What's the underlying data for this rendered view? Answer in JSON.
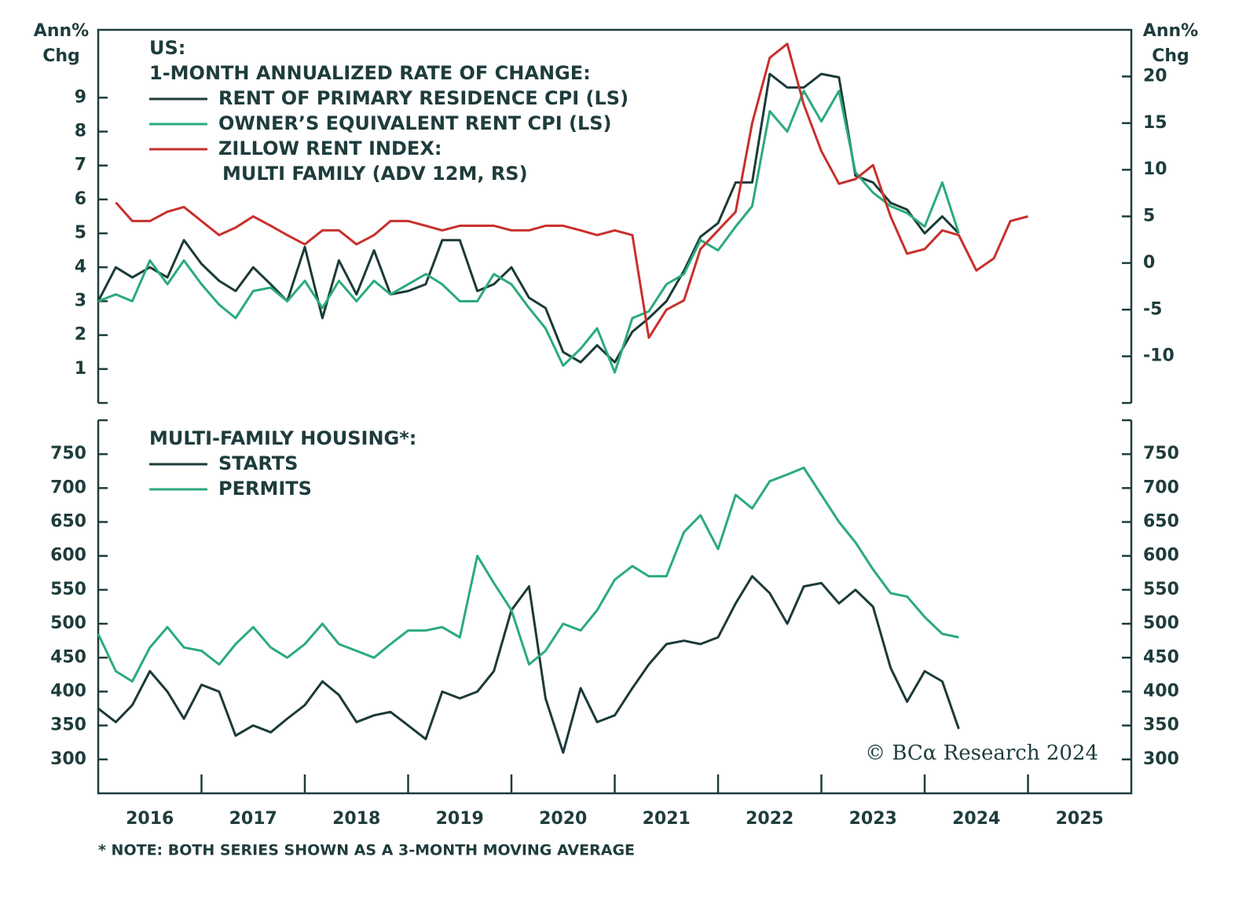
{
  "chart_data": [
    {
      "type": "line",
      "legend_title": [
        "US:",
        "1-MONTH ANNUALIZED RATE OF CHANGE:"
      ],
      "y_label": [
        "Ann%",
        "Chg"
      ],
      "y2_label": [
        "Ann%",
        "Chg"
      ],
      "xlim": [
        2016,
        2026
      ],
      "ylim": [
        0,
        11
      ],
      "yticks": [
        1,
        2,
        3,
        4,
        5,
        6,
        7,
        8,
        9
      ],
      "y2lim": [
        -15,
        25
      ],
      "y2ticks": [
        -10,
        -5,
        0,
        5,
        10,
        15,
        20
      ],
      "x": [
        2016.0,
        2016.17,
        2016.33,
        2016.5,
        2016.67,
        2016.83,
        2017.0,
        2017.17,
        2017.33,
        2017.5,
        2017.67,
        2017.83,
        2018.0,
        2018.17,
        2018.33,
        2018.5,
        2018.67,
        2018.83,
        2019.0,
        2019.17,
        2019.33,
        2019.5,
        2019.67,
        2019.83,
        2020.0,
        2020.17,
        2020.33,
        2020.5,
        2020.67,
        2020.83,
        2021.0,
        2021.17,
        2021.33,
        2021.5,
        2021.67,
        2021.83,
        2022.0,
        2022.17,
        2022.33,
        2022.5,
        2022.67,
        2022.83,
        2023.0,
        2023.17,
        2023.33,
        2023.5,
        2023.67,
        2023.83,
        2024.0,
        2024.17,
        2024.33,
        2024.5,
        2024.67,
        2024.83,
        2025.0
      ],
      "series": [
        {
          "name": "RENT OF PRIMARY RESIDENCE CPI (LS)",
          "color": "#1c3a3a",
          "values": [
            3.0,
            4.0,
            3.7,
            4.0,
            3.7,
            4.8,
            4.1,
            3.6,
            3.3,
            4.0,
            3.5,
            3.0,
            4.6,
            2.5,
            4.2,
            3.2,
            4.5,
            3.2,
            3.3,
            3.5,
            4.8,
            4.8,
            3.3,
            3.5,
            4.0,
            3.1,
            2.8,
            1.5,
            1.2,
            1.7,
            1.2,
            2.1,
            2.5,
            3.0,
            3.9,
            4.9,
            5.3,
            6.5,
            6.5,
            9.7,
            9.3,
            9.3,
            9.7,
            9.6,
            6.7,
            6.5,
            5.9,
            5.7,
            5.0,
            5.5,
            5.0,
            null,
            null,
            null,
            null
          ]
        },
        {
          "name": "OWNER’S EQUIVALENT RENT CPI (LS)",
          "color": "#2bab7b",
          "values": [
            3.0,
            3.2,
            3.0,
            4.2,
            3.5,
            4.2,
            3.5,
            2.9,
            2.5,
            3.3,
            3.4,
            3.0,
            3.6,
            2.8,
            3.6,
            3.0,
            3.6,
            3.2,
            3.5,
            3.8,
            3.5,
            3.0,
            3.0,
            3.8,
            3.5,
            2.8,
            2.2,
            1.1,
            1.6,
            2.2,
            0.9,
            2.5,
            2.7,
            3.5,
            3.8,
            4.8,
            4.5,
            5.2,
            5.8,
            8.6,
            8.0,
            9.2,
            8.3,
            9.2,
            6.8,
            6.2,
            5.8,
            5.6,
            5.2,
            6.5,
            5.0,
            null,
            null,
            null,
            null
          ]
        },
        {
          "name_lines": [
            "ZILLOW RENT INDEX:",
            "MULTI FAMILY (ADV 12M, RS)"
          ],
          "color": "#c8302c",
          "axis": "y2",
          "values": [
            null,
            6.5,
            4.5,
            4.5,
            5.5,
            6.0,
            4.5,
            3.0,
            3.8,
            5.0,
            4.0,
            3.0,
            2.0,
            3.5,
            3.5,
            2.0,
            3.0,
            4.5,
            4.5,
            4.0,
            3.5,
            4.0,
            4.0,
            4.0,
            3.5,
            3.5,
            4.0,
            4.0,
            3.5,
            3.0,
            3.5,
            3.0,
            -8,
            -5,
            -4,
            1.5,
            3.5,
            5.5,
            15,
            22,
            23.5,
            17,
            12,
            8.5,
            9,
            10.5,
            5,
            1,
            1.5,
            3.5,
            3,
            -0.8,
            0.5,
            4.5,
            5
          ]
        }
      ]
    },
    {
      "type": "line",
      "legend_title": [
        "MULTI-FAMILY HOUSING*:"
      ],
      "xlim": [
        2016,
        2026
      ],
      "xticks": [
        {
          "value": 2016.5,
          "label": "2016"
        },
        {
          "value": 2017.5,
          "label": "2017"
        },
        {
          "value": 2018.5,
          "label": "2018"
        },
        {
          "value": 2019.5,
          "label": "2019"
        },
        {
          "value": 2020.5,
          "label": "2020"
        },
        {
          "value": 2021.5,
          "label": "2021"
        },
        {
          "value": 2022.5,
          "label": "2022"
        },
        {
          "value": 2023.5,
          "label": "2023"
        },
        {
          "value": 2024.5,
          "label": "2024"
        },
        {
          "value": 2025.5,
          "label": "2025"
        }
      ],
      "xtick_marks": [
        2017,
        2018,
        2019,
        2020,
        2021,
        2022,
        2023,
        2024,
        2025
      ],
      "ylim": [
        250,
        800
      ],
      "yticks": [
        300,
        350,
        400,
        450,
        500,
        550,
        600,
        650,
        700,
        750
      ],
      "x": [
        2016.0,
        2016.17,
        2016.33,
        2016.5,
        2016.67,
        2016.83,
        2017.0,
        2017.17,
        2017.33,
        2017.5,
        2017.67,
        2017.83,
        2018.0,
        2018.17,
        2018.33,
        2018.5,
        2018.67,
        2018.83,
        2019.0,
        2019.17,
        2019.33,
        2019.5,
        2019.67,
        2019.83,
        2020.0,
        2020.17,
        2020.33,
        2020.5,
        2020.67,
        2020.83,
        2021.0,
        2021.17,
        2021.33,
        2021.5,
        2021.67,
        2021.83,
        2022.0,
        2022.17,
        2022.33,
        2022.5,
        2022.67,
        2022.83,
        2023.0,
        2023.17,
        2023.33,
        2023.5,
        2023.67,
        2023.83,
        2024.0,
        2024.17,
        2024.33
      ],
      "series": [
        {
          "name": "STARTS",
          "color": "#1c3a3a",
          "values": [
            375,
            355,
            380,
            430,
            400,
            360,
            410,
            400,
            335,
            350,
            340,
            360,
            380,
            415,
            395,
            355,
            365,
            370,
            350,
            330,
            400,
            390,
            400,
            430,
            520,
            555,
            390,
            310,
            405,
            355,
            365,
            405,
            440,
            470,
            475,
            470,
            480,
            530,
            570,
            545,
            500,
            555,
            560,
            530,
            550,
            525,
            435,
            385,
            430,
            415,
            345
          ]
        },
        {
          "name": "PERMITS",
          "color": "#2bab7b",
          "values": [
            485,
            430,
            415,
            465,
            495,
            465,
            460,
            440,
            470,
            495,
            465,
            450,
            470,
            500,
            470,
            460,
            450,
            470,
            490,
            490,
            495,
            480,
            600,
            560,
            520,
            440,
            460,
            500,
            490,
            520,
            565,
            585,
            570,
            570,
            635,
            660,
            610,
            690,
            670,
            710,
            720,
            730,
            690,
            650,
            620,
            580,
            545,
            540,
            510,
            485,
            480
          ]
        }
      ]
    }
  ],
  "source": "© BCα Research 2024",
  "footnote": "* NOTE: BOTH SERIES SHOWN AS A 3-MONTH MOVING AVERAGE"
}
